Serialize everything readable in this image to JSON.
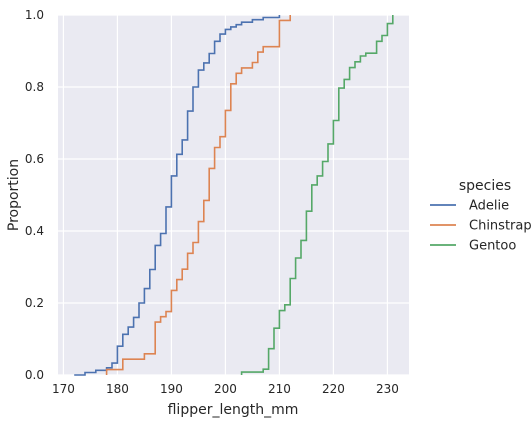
{
  "chart_data": {
    "type": "line",
    "subtype": "ecdf-step",
    "xlabel": "flipper_length_mm",
    "ylabel": "Proportion",
    "xlim": [
      169,
      234
    ],
    "ylim": [
      0,
      1
    ],
    "x_ticks": [
      170,
      180,
      190,
      200,
      210,
      220,
      230
    ],
    "y_ticks": [
      0.0,
      0.2,
      0.4,
      0.6,
      0.8,
      1.0
    ],
    "x_tick_labels": [
      "170",
      "180",
      "190",
      "200",
      "210",
      "220",
      "230"
    ],
    "y_tick_labels": [
      "0.0",
      "0.2",
      "0.4",
      "0.6",
      "0.8",
      "1.0"
    ],
    "grid": true,
    "background": "#eaeaf2",
    "legend": {
      "title": "species",
      "placement": "right"
    },
    "series": [
      {
        "name": "Adelie",
        "color": "#4c72b0",
        "x": [
          172,
          174,
          176,
          178,
          179,
          180,
          181,
          182,
          183,
          184,
          185,
          186,
          187,
          188,
          189,
          190,
          191,
          192,
          193,
          194,
          195,
          196,
          197,
          198,
          199,
          200,
          201,
          202,
          203,
          205,
          207,
          208,
          210
        ],
        "y": [
          0,
          0.007,
          0.013,
          0.02,
          0.033,
          0.08,
          0.113,
          0.133,
          0.16,
          0.2,
          0.24,
          0.293,
          0.36,
          0.393,
          0.467,
          0.553,
          0.613,
          0.653,
          0.733,
          0.8,
          0.847,
          0.867,
          0.893,
          0.927,
          0.947,
          0.96,
          0.967,
          0.973,
          0.98,
          0.987,
          0.993,
          0.993,
          1.0
        ]
      },
      {
        "name": "Chinstrap",
        "color": "#dd8452",
        "x": [
          178,
          181,
          185,
          187,
          188,
          189,
          190,
          191,
          192,
          193,
          194,
          195,
          196,
          197,
          198,
          199,
          200,
          201,
          202,
          203,
          205,
          206,
          207,
          210,
          212
        ],
        "y": [
          0.015,
          0.044,
          0.059,
          0.147,
          0.162,
          0.176,
          0.235,
          0.265,
          0.294,
          0.338,
          0.368,
          0.426,
          0.485,
          0.574,
          0.632,
          0.662,
          0.735,
          0.809,
          0.838,
          0.853,
          0.868,
          0.897,
          0.912,
          0.985,
          1.0
        ]
      },
      {
        "name": "Gentoo",
        "color": "#55a868",
        "x": [
          203,
          207,
          208,
          209,
          210,
          211,
          212,
          213,
          214,
          215,
          216,
          217,
          218,
          219,
          220,
          221,
          222,
          223,
          224,
          225,
          226,
          228,
          229,
          230,
          231
        ],
        "y": [
          0.008,
          0.016,
          0.073,
          0.13,
          0.179,
          0.195,
          0.268,
          0.325,
          0.374,
          0.455,
          0.528,
          0.553,
          0.593,
          0.642,
          0.707,
          0.797,
          0.821,
          0.854,
          0.87,
          0.886,
          0.894,
          0.927,
          0.943,
          0.976,
          1.0
        ]
      }
    ]
  }
}
